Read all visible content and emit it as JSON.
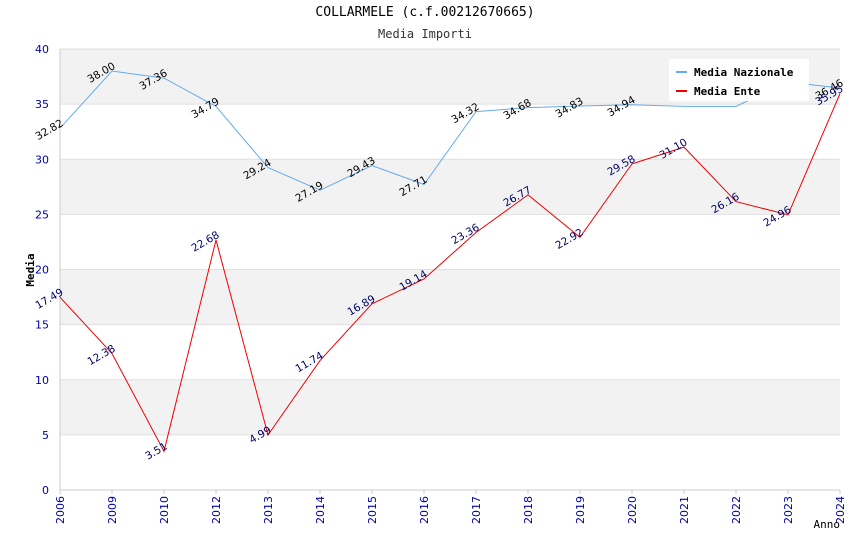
{
  "chart_data": {
    "type": "line",
    "title": "COLLARMELE (c.f.00212670665)",
    "subtitle": "Media Importi",
    "xlabel": "Anno",
    "ylabel": "Media",
    "categories": [
      "2006",
      "2009",
      "2010",
      "2012",
      "2013",
      "2014",
      "2015",
      "2016",
      "2017",
      "2018",
      "2019",
      "2020",
      "2021",
      "2022",
      "2023",
      "2024"
    ],
    "yticks": [
      "0",
      "5",
      "10",
      "15",
      "20",
      "25",
      "30",
      "35",
      "40"
    ],
    "ylim": [
      0,
      40
    ],
    "grid": true,
    "legend_position": "top-right",
    "series": [
      {
        "name": "Media Nazionale",
        "color": "#66aaee",
        "label_color": "#000000",
        "values": [
          32.82,
          38.0,
          37.36,
          34.79,
          29.24,
          27.19,
          29.43,
          27.71,
          34.32,
          34.68,
          34.83,
          34.94,
          34.8,
          34.8,
          37.0,
          36.46
        ],
        "labels": [
          "32.82",
          "38.00",
          "37.36",
          "34.79",
          "29.24",
          "27.19",
          "29.43",
          "27.71",
          "34.32",
          "34.68",
          "34.83",
          "34.94",
          "",
          "",
          "",
          "36.46"
        ]
      },
      {
        "name": "Media Ente",
        "color": "#ee0000",
        "label_color": "#000066",
        "values": [
          17.49,
          12.38,
          3.51,
          22.68,
          4.99,
          11.74,
          16.89,
          19.14,
          23.36,
          26.77,
          22.92,
          29.58,
          31.1,
          26.16,
          24.96,
          35.95
        ],
        "labels": [
          "17.49",
          "12.38",
          "3.51",
          "22.68",
          "4.99",
          "11.74",
          "16.89",
          "19.14",
          "23.36",
          "26.77",
          "22.92",
          "29.58",
          "31.10",
          "26.16",
          "24.96",
          "35.95"
        ]
      }
    ]
  }
}
